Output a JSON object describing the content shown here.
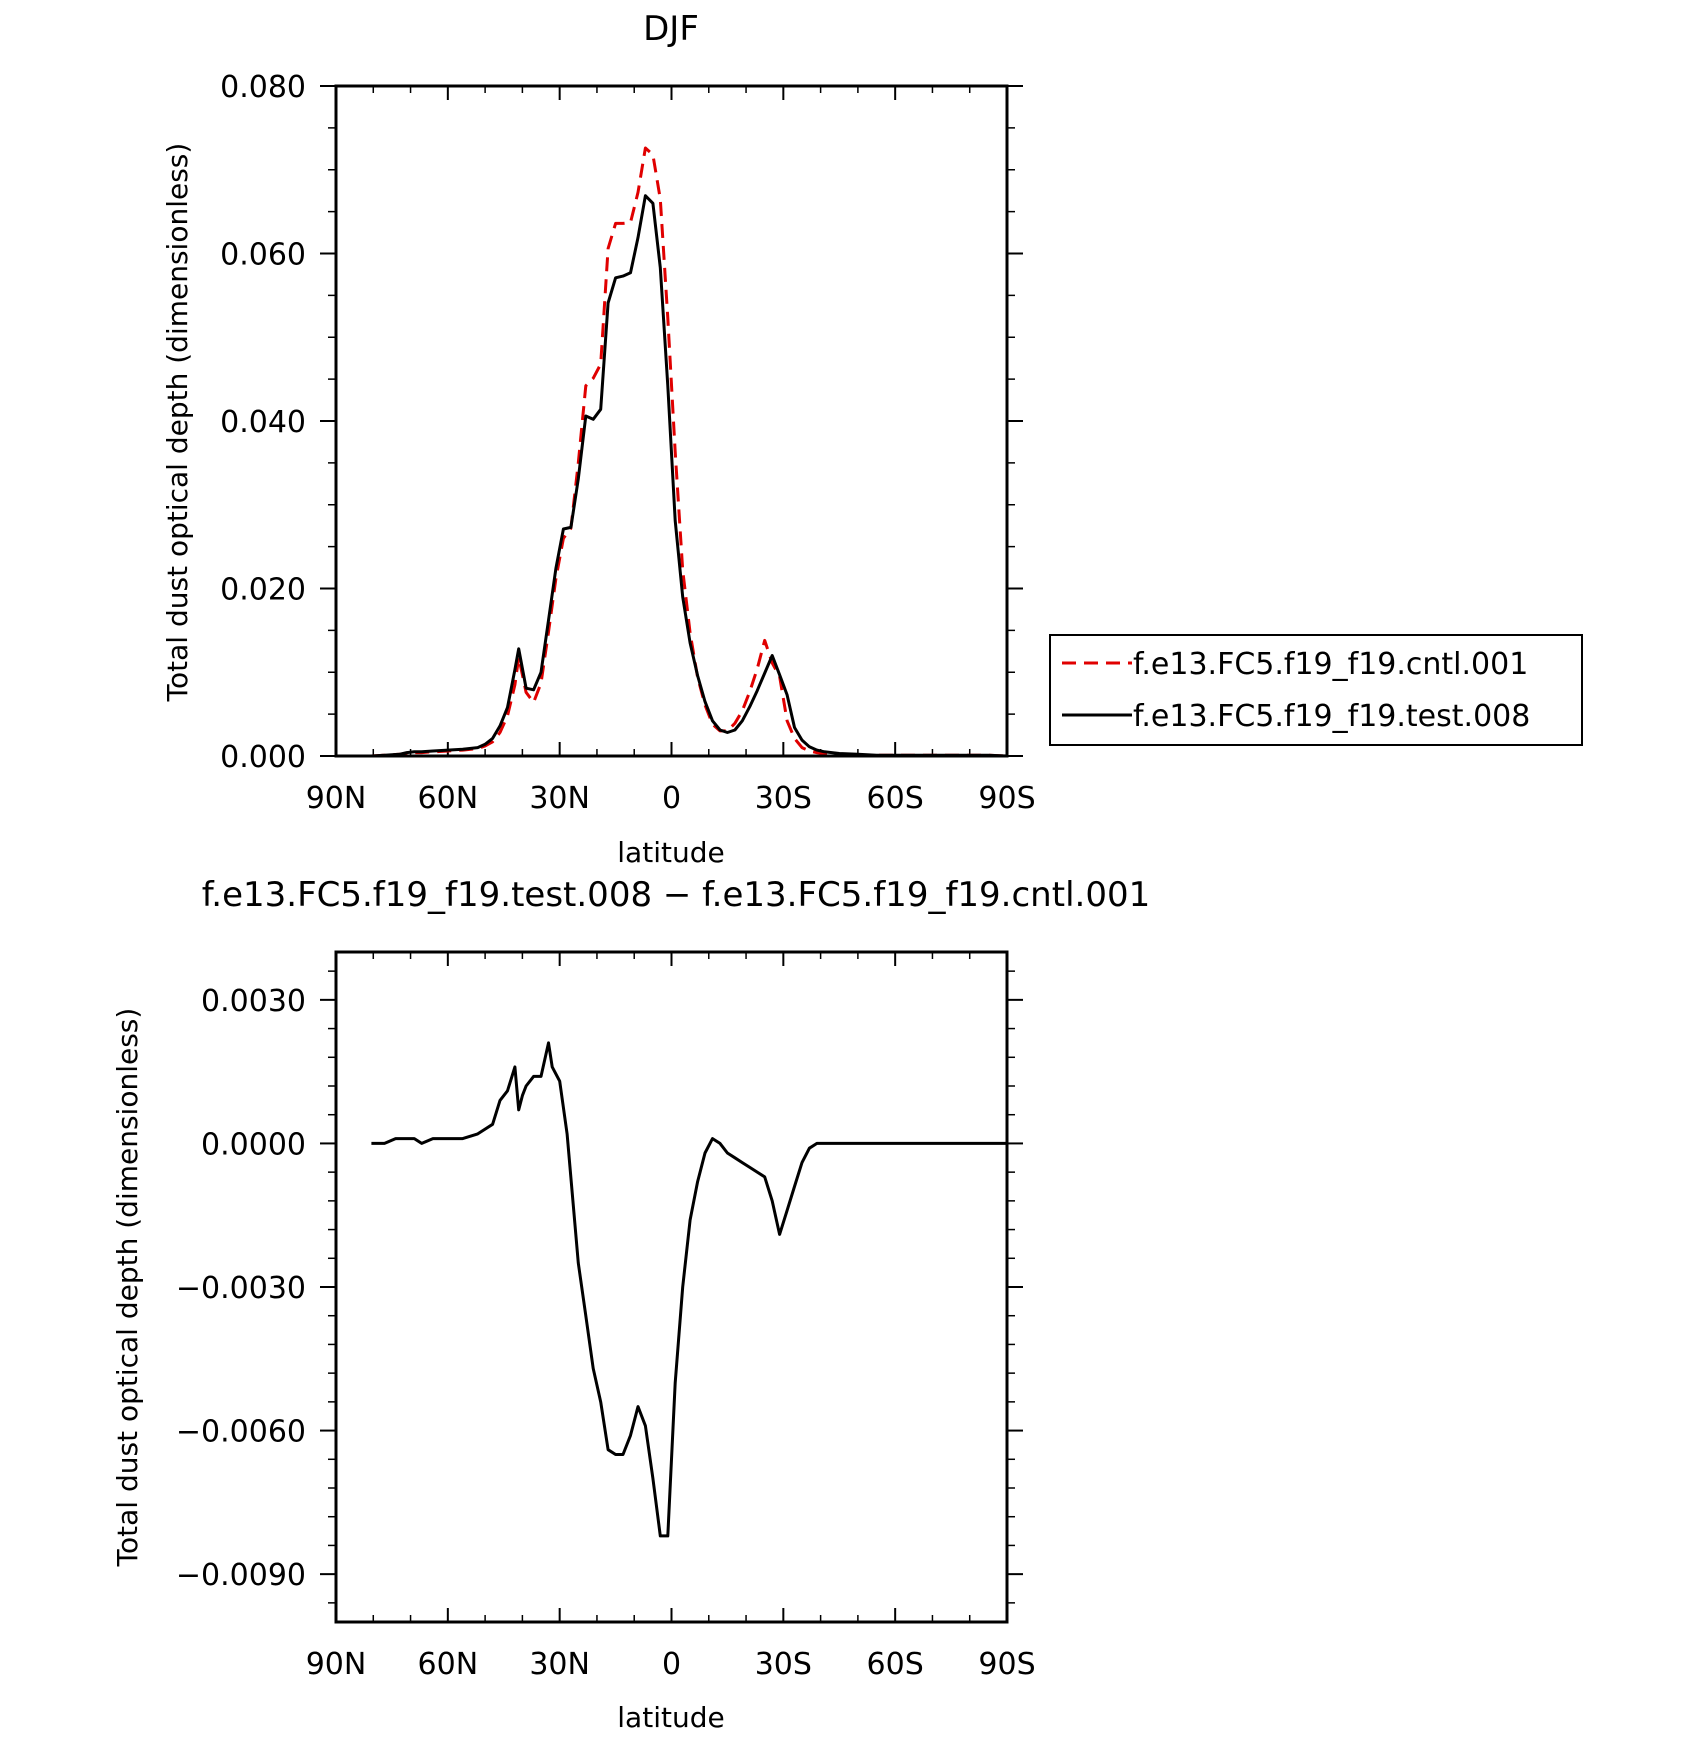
{
  "chart_data": [
    {
      "type": "line",
      "title": "DJF",
      "xlabel": "latitude",
      "ylabel": "Total dust optical depth (dimensionless)",
      "xlim": [
        90,
        -90
      ],
      "ylim": [
        0,
        0.08
      ],
      "x_ticks": [
        90,
        60,
        30,
        0,
        -30,
        -60,
        -90
      ],
      "x_tick_labels": [
        "90N",
        "60N",
        "30N",
        "0",
        "30S",
        "60S",
        "90S"
      ],
      "y_ticks": [
        0,
        0.02,
        0.04,
        0.06,
        0.08
      ],
      "y_tick_labels": [
        "0.000",
        "0.020",
        "0.040",
        "0.060",
        "0.080"
      ],
      "legend_position": "right",
      "series": [
        {
          "name": "f.e13.FC5.f19_f19.cntl.001",
          "color": "#e00000",
          "dash": "dashed",
          "x": [
            80.5,
            77,
            73,
            71,
            69,
            67,
            64,
            60,
            56,
            52,
            50,
            48,
            46,
            44,
            42,
            41,
            39,
            37,
            35,
            33,
            31,
            29,
            27,
            25,
            23,
            21,
            19,
            17,
            15,
            13,
            11,
            9,
            7,
            5,
            3,
            1,
            -1,
            -3,
            -5,
            -7,
            -9,
            -11,
            -13,
            -15,
            -17,
            -19,
            -21,
            -23,
            -25,
            -27,
            -29,
            -31,
            -33,
            -35,
            -37,
            -39,
            -41,
            -45,
            -50,
            -55,
            -60,
            -65,
            -70,
            -75,
            -80,
            -85,
            -90
          ],
          "y": [
            0.0,
            0.0001,
            0.0002,
            0.0003,
            0.0004,
            0.0004,
            0.0005,
            0.0006,
            0.0007,
            0.0009,
            0.0012,
            0.0017,
            0.0028,
            0.0048,
            0.0085,
            0.0118,
            0.0076,
            0.0064,
            0.0087,
            0.0148,
            0.0212,
            0.026,
            0.0272,
            0.035,
            0.0442,
            0.0451,
            0.0468,
            0.0606,
            0.0636,
            0.0636,
            0.0637,
            0.0673,
            0.0726,
            0.0718,
            0.0665,
            0.0523,
            0.0363,
            0.0222,
            0.0147,
            0.0094,
            0.0061,
            0.0038,
            0.003,
            0.003,
            0.0039,
            0.0054,
            0.0077,
            0.0104,
            0.0138,
            0.0111,
            0.0095,
            0.0042,
            0.0021,
            0.001,
            0.0006,
            0.0004,
            0.0003,
            0.0002,
            0.0001,
            0.0001,
            0.0001,
            0.0001,
            0.0001,
            0.0001,
            0.0001,
            0.0001,
            0.0
          ]
        },
        {
          "name": "f.e13.FC5.f19_f19.test.008",
          "color": "#000000",
          "dash": "solid",
          "x": [
            80.5,
            77,
            73,
            71,
            69,
            67,
            64,
            60,
            56,
            52,
            50,
            48,
            46,
            44,
            42,
            41,
            39,
            37,
            35,
            33,
            31,
            29,
            27,
            25,
            23,
            21,
            19,
            17,
            15,
            13,
            11,
            9,
            7,
            5,
            3,
            1,
            -1,
            -3,
            -5,
            -7,
            -9,
            -11,
            -13,
            -15,
            -17,
            -19,
            -21,
            -23,
            -25,
            -27,
            -29,
            -31,
            -33,
            -35,
            -37,
            -39,
            -41,
            -45,
            -50,
            -55,
            -60,
            -65,
            -70,
            -75,
            -80,
            -85,
            -90
          ],
          "y": [
            0.0,
            0.0001,
            0.0002,
            0.0004,
            0.0005,
            0.0005,
            0.0006,
            0.0007,
            0.0008,
            0.001,
            0.0014,
            0.0021,
            0.0036,
            0.0058,
            0.0103,
            0.0128,
            0.0081,
            0.0079,
            0.01,
            0.0162,
            0.0224,
            0.0271,
            0.0273,
            0.0331,
            0.0406,
            0.0402,
            0.0414,
            0.0541,
            0.0571,
            0.0573,
            0.0577,
            0.0619,
            0.0669,
            0.066,
            0.0583,
            0.0442,
            0.0281,
            0.019,
            0.0135,
            0.0096,
            0.0065,
            0.0042,
            0.0031,
            0.0028,
            0.0031,
            0.0042,
            0.0059,
            0.0078,
            0.0099,
            0.012,
            0.0097,
            0.0073,
            0.0034,
            0.0019,
            0.0011,
            0.0007,
            0.0005,
            0.0003,
            0.0002,
            0.0001,
            0.0001,
            0.0001,
            0.0001,
            0.0001,
            0.0001,
            0.0001,
            0.0
          ]
        }
      ]
    },
    {
      "type": "line",
      "title": "f.e13.FC5.f19_f19.test.008 − f.e13.FC5.f19_f19.cntl.001",
      "xlabel": "latitude",
      "ylabel": "Total dust optical depth (dimensionless)",
      "xlim": [
        90,
        -90
      ],
      "ylim": [
        -0.01,
        0.004
      ],
      "x_ticks": [
        90,
        60,
        30,
        0,
        -30,
        -60,
        -90
      ],
      "x_tick_labels": [
        "90N",
        "60N",
        "30N",
        "0",
        "30S",
        "60S",
        "90S"
      ],
      "y_ticks": [
        0.003,
        0.0,
        -0.003,
        -0.006,
        -0.009
      ],
      "y_tick_labels": [
        "0.0030",
        "0.0000",
        "−0.0030",
        "−0.0060",
        "−0.0090"
      ],
      "series": [
        {
          "color": "#000000",
          "dash": "solid",
          "x": [
            80.5,
            79,
            77,
            74,
            71,
            69,
            67,
            64,
            60,
            56,
            52,
            50,
            48,
            46,
            44,
            42,
            41,
            40,
            39,
            37,
            35,
            33,
            32,
            30,
            28,
            25,
            23,
            21,
            19,
            17,
            15,
            13,
            11,
            9,
            7,
            5,
            3,
            1,
            -1,
            -3,
            -5,
            -7,
            -9,
            -11,
            -13,
            -15,
            -17,
            -19,
            -21,
            -23,
            -25,
            -27,
            -29,
            -31,
            -33,
            -35,
            -37,
            -39,
            -41,
            -45,
            -50,
            -55,
            -60,
            -65,
            -70,
            -75,
            -80,
            -85,
            -90
          ],
          "y": [
            0.0,
            0.0,
            0.0,
            0.0001,
            0.0001,
            0.0001,
            0.0,
            0.0001,
            0.0001,
            0.0001,
            0.0002,
            0.0003,
            0.0004,
            0.0009,
            0.0011,
            0.0016,
            0.0007,
            0.001,
            0.0012,
            0.0014,
            0.0014,
            0.0021,
            0.0016,
            0.0013,
            0.0002,
            -0.0025,
            -0.0036,
            -0.0047,
            -0.0054,
            -0.0064,
            -0.0065,
            -0.0065,
            -0.0061,
            -0.0055,
            -0.0059,
            -0.007,
            -0.0082,
            -0.0082,
            -0.005,
            -0.003,
            -0.0016,
            -0.0008,
            -0.0002,
            0.0001,
            0.0,
            -0.0002,
            -0.0003,
            -0.0004,
            -0.0005,
            -0.0006,
            -0.0007,
            -0.0012,
            -0.0019,
            -0.0014,
            -0.0009,
            -0.0004,
            -0.0001,
            0.0,
            0.0,
            0.0,
            0.0,
            0.0,
            0.0,
            0.0,
            0.0,
            0.0,
            0.0,
            0.0,
            0.0
          ]
        }
      ]
    }
  ]
}
